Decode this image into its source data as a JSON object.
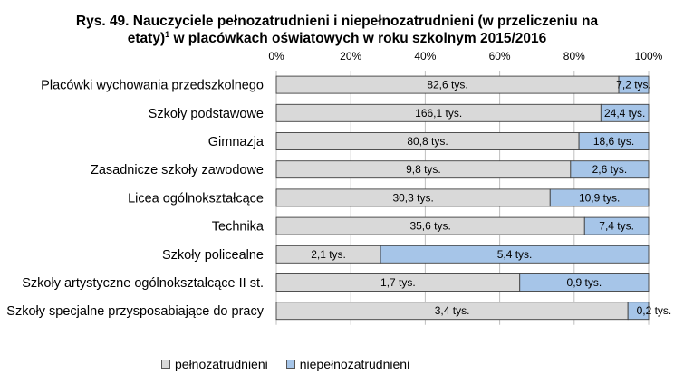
{
  "chart_data": {
    "type": "bar",
    "orientation": "horizontal",
    "stacked": "percent",
    "title": "Rys. 49. Nauczyciele  pełnozatrudnieni i niepełnozatrudnieni (w przeliczeniu na",
    "title_line2": "etaty)",
    "title_sup": "1",
    "title_line2_rest": " w placówkach oświatowych w roku szkolnym 2015/2016",
    "xlim": [
      0,
      100
    ],
    "x_ticks": [
      0,
      20,
      40,
      60,
      80,
      100
    ],
    "x_tick_labels": [
      "0%",
      "20%",
      "40%",
      "60%",
      "80%",
      "100%"
    ],
    "grid": true,
    "legend_position": "bottom",
    "categories": [
      "Placówki wychowania przedszkolnego",
      "Szkoły podstawowe",
      "Gimnazja",
      "Zasadnicze szkoły zawodowe",
      "Licea ogólnokształcące",
      "Technika",
      "Szkoły policealne",
      "Szkoły artystyczne ogólnokształcące II st.",
      "Szkoły specjalne przysposabiające do pracy"
    ],
    "series": [
      {
        "name": "pełnozatrudnieni",
        "color": "#d9d9d9",
        "values": [
          82.6,
          166.1,
          80.8,
          9.8,
          30.3,
          35.6,
          2.1,
          1.7,
          3.4
        ],
        "labels": [
          "82,6 tys.",
          "166,1 tys.",
          "80,8 tys.",
          "9,8 tys.",
          "30,3 tys.",
          "35,6 tys.",
          "2,1 tys.",
          "1,7 tys.",
          "3,4 tys."
        ]
      },
      {
        "name": "niepełnozatrudnieni",
        "color": "#a6c5e8",
        "values": [
          7.2,
          24.4,
          18.6,
          2.6,
          10.9,
          7.4,
          5.4,
          0.9,
          0.2
        ],
        "labels": [
          "7,2 tys.",
          "24,4 tys.",
          "18,6 tys.",
          "2,6 tys.",
          "10,9 tys.",
          "7,4 tys.",
          "5,4 tys.",
          "0,9 tys.",
          "0,2 tys."
        ]
      }
    ]
  }
}
